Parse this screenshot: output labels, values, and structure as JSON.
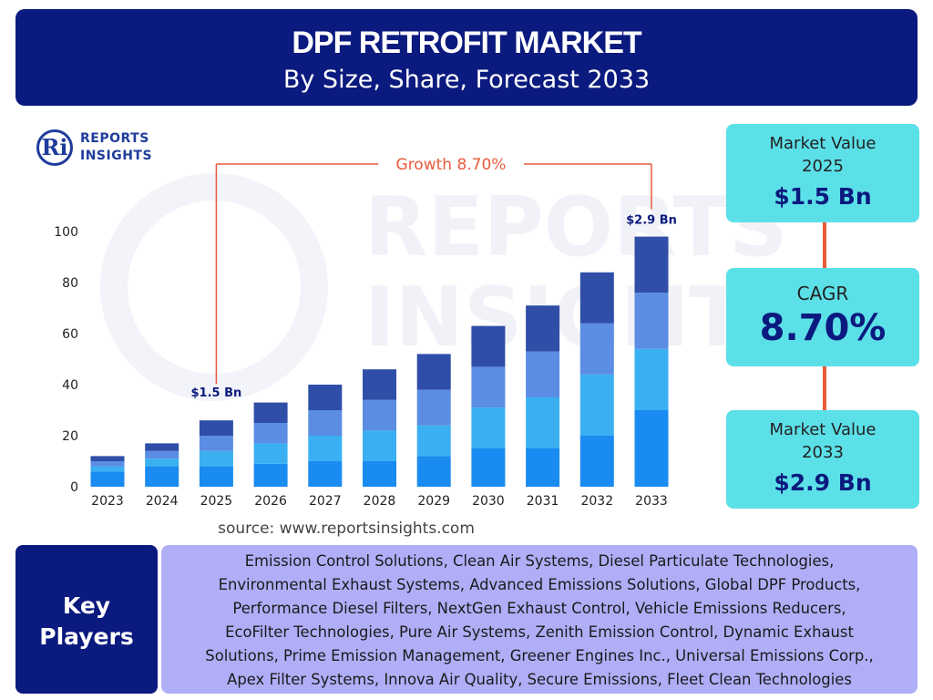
{
  "header": {
    "title": "DPF RETROFIT MARKET",
    "subtitle": "By Size, Share, Forecast 2033"
  },
  "logo": {
    "mark": "Ri",
    "line1": "REPORTS",
    "line2": "INSIGHTS"
  },
  "colors": {
    "navy": "#0b1a7e",
    "cyan": "#5ce0e8",
    "lavender": "#b1aef8",
    "accent": "#e85a3a",
    "bar_seg1": "#1a8bf0",
    "bar_seg2": "#3ab0f2",
    "bar_seg3": "#5a8de3",
    "bar_seg4": "#2e4ea8"
  },
  "chart_data": {
    "type": "bar",
    "stacked": true,
    "categories": [
      "2023",
      "2024",
      "2025",
      "2026",
      "2027",
      "2028",
      "2029",
      "2030",
      "2031",
      "2032",
      "2033"
    ],
    "series": [
      {
        "values": [
          6,
          8,
          8,
          9,
          10,
          10,
          12,
          15,
          15,
          20,
          30
        ]
      },
      {
        "values": [
          2,
          3,
          6,
          8,
          10,
          12,
          12,
          16,
          20,
          24,
          24
        ]
      },
      {
        "values": [
          2,
          3,
          6,
          8,
          10,
          12,
          14,
          16,
          18,
          20,
          22
        ]
      },
      {
        "values": [
          2,
          3,
          6,
          8,
          10,
          12,
          14,
          16,
          18,
          20,
          22
        ]
      }
    ],
    "ylim": [
      0,
      100
    ],
    "yticks": [
      0,
      20,
      40,
      60,
      80,
      100
    ],
    "grid": false,
    "annotations": {
      "growth": "Growth  8.70%",
      "start_label": "$1.5 Bn",
      "end_label": "$2.9 Bn"
    }
  },
  "source": "source: www.reportsinsights.com",
  "cards": {
    "value_2025": {
      "label_line1": "Market Value",
      "label_line2": "2025",
      "value": "$1.5 Bn"
    },
    "cagr": {
      "label": "CAGR",
      "value": "8.70%"
    },
    "value_2033": {
      "label_line1": "Market Value",
      "label_line2": "2033",
      "value": "$2.9 Bn"
    }
  },
  "key_players": {
    "heading_line1": "Key",
    "heading_line2": "Players",
    "lines": [
      "Emission Control Solutions, Clean Air Systems, Diesel Particulate Technologies,",
      "Environmental Exhaust Systems, Advanced Emissions Solutions, Global DPF Products,",
      "Performance Diesel Filters, NextGen Exhaust Control, Vehicle Emissions Reducers,",
      "EcoFilter Technologies, Pure Air Systems, Zenith Emission Control, Dynamic Exhaust",
      "Solutions, Prime Emission Management, Greener Engines Inc., Universal Emissions Corp.,",
      "Apex Filter Systems, Innova Air Quality, Secure Emissions, Fleet Clean Technologies"
    ]
  }
}
